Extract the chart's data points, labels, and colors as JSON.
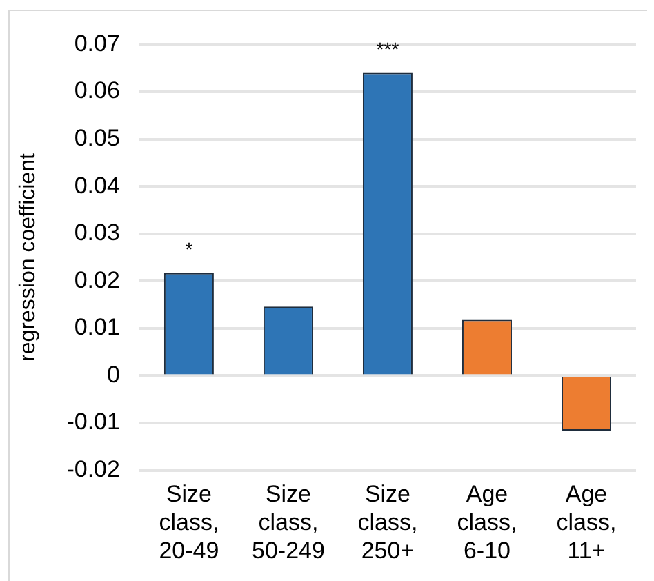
{
  "chart_data": {
    "type": "bar",
    "ylabel": "regression coefficient",
    "categories": [
      "Size class, 20-49",
      "Size class, 50-249",
      "Size class, 250+",
      "Age class, 6-10",
      "Age class, 11+"
    ],
    "values": [
      0.0217,
      0.0146,
      0.064,
      0.0118,
      -0.0116
    ],
    "colors": [
      "#2e75b6",
      "#2e75b6",
      "#2e75b6",
      "#ed7d31",
      "#ed7d31"
    ],
    "ylim": [
      -0.02,
      0.07
    ],
    "yticks": [
      -0.02,
      -0.01,
      0,
      0.01,
      0.02,
      0.03,
      0.04,
      0.05,
      0.06,
      0.07
    ],
    "value_labels": [
      "*",
      null,
      "***",
      null,
      null
    ],
    "grid": "y",
    "legend": false
  }
}
